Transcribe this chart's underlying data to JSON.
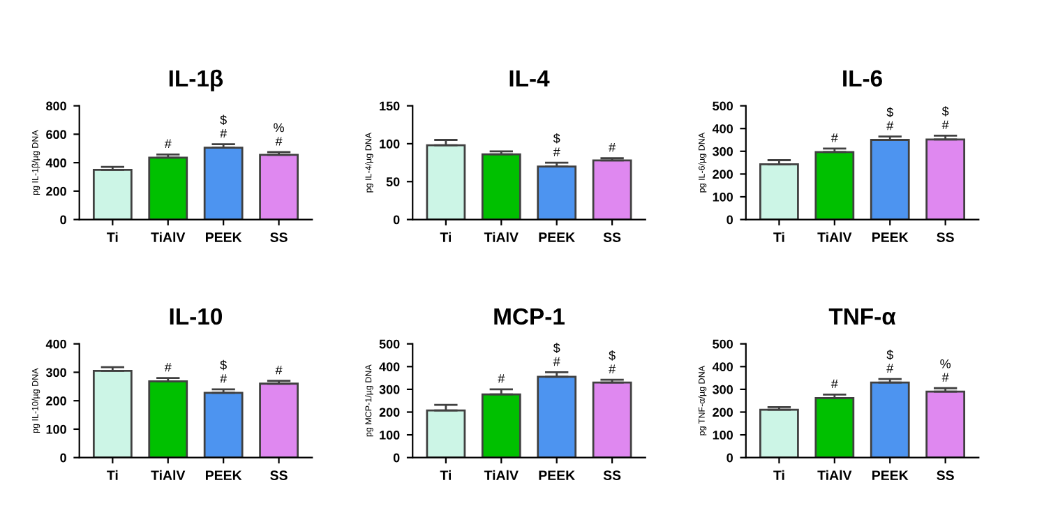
{
  "chart_data": [
    {
      "type": "bar",
      "title": "IL-1β",
      "ylabel": "pg IL-1β/µg DNA",
      "categories": [
        "Ti",
        "TiAlV",
        "PEEK",
        "SS"
      ],
      "values": [
        350,
        435,
        505,
        455
      ],
      "errors": [
        [
          350,
          370
        ],
        [
          435,
          458
        ],
        [
          505,
          530
        ],
        [
          455,
          475
        ]
      ],
      "colors": [
        "#ccf5e6",
        "#00c000",
        "#4d94f0",
        "#df88f0"
      ],
      "ylim": [
        0,
        800
      ],
      "yticks": [
        0,
        200,
        400,
        600,
        800
      ],
      "grid": false,
      "annotations": [
        {
          "text": "#",
          "x": "TiAlV",
          "y": 458
        },
        {
          "text": "#",
          "x": "PEEK",
          "y": 530
        },
        {
          "text": "$",
          "x": "PEEK",
          "y": 530
        },
        {
          "text": "#",
          "x": "SS",
          "y": 475
        },
        {
          "text": "%",
          "x": "SS",
          "y": 475
        }
      ]
    },
    {
      "type": "bar",
      "title": "IL-4",
      "ylabel": "pg IL-4/µg DNA",
      "categories": [
        "Ti",
        "TiAlV",
        "PEEK",
        "SS"
      ],
      "values": [
        98,
        86,
        70,
        78
      ],
      "errors": [
        [
          98,
          105
        ],
        [
          86,
          90
        ],
        [
          70,
          75
        ],
        [
          78,
          81
        ]
      ],
      "colors": [
        "#ccf5e6",
        "#00c000",
        "#4d94f0",
        "#df88f0"
      ],
      "ylim": [
        0,
        150
      ],
      "yticks": [
        0,
        50,
        100,
        150
      ],
      "grid": false,
      "annotations": [
        {
          "text": "#",
          "x": "PEEK",
          "y": 75
        },
        {
          "text": "$",
          "x": "PEEK",
          "y": 75
        },
        {
          "text": "#",
          "x": "SS",
          "y": 81
        }
      ]
    },
    {
      "type": "bar",
      "title": "IL-6",
      "ylabel": "pg IL-6/µg DNA",
      "categories": [
        "Ti",
        "TiAlV",
        "PEEK",
        "SS"
      ],
      "values": [
        243,
        297,
        350,
        352
      ],
      "errors": [
        [
          243,
          261
        ],
        [
          297,
          312
        ],
        [
          350,
          365
        ],
        [
          352,
          369
        ]
      ],
      "colors": [
        "#ccf5e6",
        "#00c000",
        "#4d94f0",
        "#df88f0"
      ],
      "ylim": [
        0,
        500
      ],
      "yticks": [
        0,
        100,
        200,
        300,
        400,
        500
      ],
      "grid": false,
      "annotations": [
        {
          "text": "#",
          "x": "TiAlV",
          "y": 312
        },
        {
          "text": "#",
          "x": "PEEK",
          "y": 365
        },
        {
          "text": "$",
          "x": "PEEK",
          "y": 365
        },
        {
          "text": "#",
          "x": "SS",
          "y": 369
        },
        {
          "text": "$",
          "x": "SS",
          "y": 369
        }
      ]
    },
    {
      "type": "bar",
      "title": "IL-10",
      "ylabel": "pg IL-10/µg DNA",
      "categories": [
        "Ti",
        "TiAlV",
        "PEEK",
        "SS"
      ],
      "values": [
        305,
        268,
        228,
        260
      ],
      "errors": [
        [
          305,
          318
        ],
        [
          268,
          280
        ],
        [
          228,
          240
        ],
        [
          260,
          270
        ]
      ],
      "colors": [
        "#ccf5e6",
        "#00c000",
        "#4d94f0",
        "#df88f0"
      ],
      "ylim": [
        0,
        400
      ],
      "yticks": [
        0,
        100,
        200,
        300,
        400
      ],
      "grid": false,
      "annotations": [
        {
          "text": "#",
          "x": "TiAlV",
          "y": 280
        },
        {
          "text": "#",
          "x": "PEEK",
          "y": 240
        },
        {
          "text": "$",
          "x": "PEEK",
          "y": 240
        },
        {
          "text": "#",
          "x": "SS",
          "y": 270
        }
      ]
    },
    {
      "type": "bar",
      "title": "MCP-1",
      "ylabel": "pg MCP-1/µg DNA",
      "categories": [
        "Ti",
        "TiAlV",
        "PEEK",
        "SS"
      ],
      "values": [
        207,
        278,
        355,
        330
      ],
      "errors": [
        [
          207,
          232
        ],
        [
          278,
          300
        ],
        [
          355,
          375
        ],
        [
          330,
          342
        ]
      ],
      "colors": [
        "#ccf5e6",
        "#00c000",
        "#4d94f0",
        "#df88f0"
      ],
      "ylim": [
        0,
        500
      ],
      "yticks": [
        0,
        100,
        200,
        300,
        400,
        500
      ],
      "grid": false,
      "annotations": [
        {
          "text": "#",
          "x": "TiAlV",
          "y": 300
        },
        {
          "text": "#",
          "x": "PEEK",
          "y": 375
        },
        {
          "text": "$",
          "x": "PEEK",
          "y": 375
        },
        {
          "text": "#",
          "x": "SS",
          "y": 342
        },
        {
          "text": "$",
          "x": "SS",
          "y": 342
        }
      ]
    },
    {
      "type": "bar",
      "title": "TNF-α",
      "ylabel": "pg TNF-α/µg DNA",
      "categories": [
        "Ti",
        "TiAlV",
        "PEEK",
        "SS"
      ],
      "values": [
        210,
        262,
        330,
        290
      ],
      "errors": [
        [
          210,
          222
        ],
        [
          262,
          277
        ],
        [
          330,
          345
        ],
        [
          290,
          305
        ]
      ],
      "colors": [
        "#ccf5e6",
        "#00c000",
        "#4d94f0",
        "#df88f0"
      ],
      "ylim": [
        0,
        500
      ],
      "yticks": [
        0,
        100,
        200,
        300,
        400,
        500
      ],
      "grid": false,
      "annotations": [
        {
          "text": "#",
          "x": "TiAlV",
          "y": 277
        },
        {
          "text": "#",
          "x": "PEEK",
          "y": 345
        },
        {
          "text": "$",
          "x": "PEEK",
          "y": 345
        },
        {
          "text": "#",
          "x": "SS",
          "y": 305
        },
        {
          "text": "%",
          "x": "SS",
          "y": 305
        }
      ]
    }
  ]
}
